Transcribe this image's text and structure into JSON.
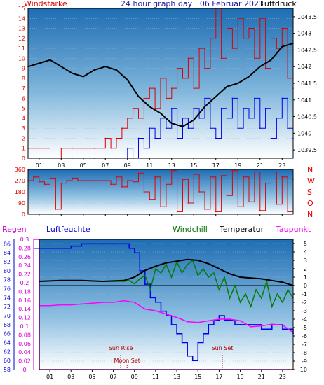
{
  "colors": {
    "background": "#ffffff",
    "plot_top": "#1f6fb4",
    "plot_bottom": "#ffffff",
    "red": "#e00000",
    "blue": "#0000ee",
    "black": "#000000",
    "green": "#008000",
    "magenta": "#ff00ff",
    "dark_red": "#b00000"
  },
  "chart_data": [
    {
      "type": "line",
      "title": "24 hour graph day : 06 Februar 2023",
      "left_label": "Windstärke",
      "right_label": "Luftdruck",
      "x_ticks": [
        "01",
        "03",
        "05",
        "07",
        "09",
        "11",
        "13",
        "15",
        "17",
        "19",
        "21",
        "23"
      ],
      "y_left_ticks": [
        "0",
        "1",
        "2",
        "3",
        "4",
        "5",
        "6",
        "7",
        "8",
        "9",
        "10",
        "11",
        "12",
        "13",
        "14",
        "15"
      ],
      "y_right_ticks": [
        "1039.5",
        "1040",
        "1040.5",
        "1041",
        "1041.5",
        "1042",
        "1042.5",
        "1043",
        "1043.5"
      ],
      "ylim_left": [
        0,
        15
      ],
      "ylim_right": [
        1039.25,
        1043.75
      ],
      "series": [
        {
          "name": "Windstärke",
          "axis": "left",
          "color": "red",
          "x": [
            0,
            1,
            2,
            3,
            4,
            5,
            6,
            7,
            7.5,
            8,
            8.5,
            9,
            9.5,
            10,
            10.5,
            11,
            11.5,
            12,
            12.5,
            13,
            13.5,
            14,
            14.5,
            15,
            15.5,
            16,
            16.5,
            17,
            17.5,
            18,
            18.5,
            19,
            19.5,
            20,
            20.5,
            21,
            21.5,
            22,
            22.5,
            23,
            23.5,
            24
          ],
          "values": [
            1,
            1,
            0,
            1,
            1,
            1,
            1,
            2,
            1,
            2,
            3,
            4,
            5,
            4,
            6,
            7,
            5,
            8,
            6,
            7,
            9,
            8,
            10,
            7,
            11,
            9,
            12,
            15,
            10,
            13,
            11,
            14,
            12,
            13,
            10,
            14,
            9,
            12,
            11,
            13,
            8,
            7
          ]
        },
        {
          "name": "Windböen",
          "axis": "left",
          "color": "blue",
          "x": [
            0,
            1,
            2,
            3,
            4,
            5,
            6,
            7,
            8,
            9,
            9.5,
            10,
            10.5,
            11,
            11.5,
            12,
            12.5,
            13,
            13.5,
            14,
            14.5,
            15,
            15.5,
            16,
            16.5,
            17,
            17.5,
            18,
            18.5,
            19,
            19.5,
            20,
            20.5,
            21,
            21.5,
            22,
            22.5,
            23,
            23.5,
            24
          ],
          "values": [
            0,
            0,
            0,
            0,
            0,
            0,
            0,
            0,
            0,
            1,
            0,
            2,
            1,
            3,
            2,
            4,
            3,
            5,
            2,
            4,
            3,
            5,
            4,
            6,
            3,
            2,
            5,
            4,
            6,
            3,
            5,
            4,
            6,
            3,
            5,
            2,
            4,
            6,
            3,
            2
          ]
        },
        {
          "name": "Luftdruck",
          "axis": "right",
          "color": "black",
          "x": [
            0,
            1,
            2,
            3,
            4,
            5,
            6,
            7,
            8,
            9,
            10,
            11,
            12,
            13,
            14,
            15,
            16,
            17,
            18,
            19,
            20,
            21,
            22,
            23,
            24
          ],
          "values": [
            1042.0,
            1042.1,
            1042.2,
            1042.0,
            1041.8,
            1041.7,
            1041.9,
            1042.0,
            1041.9,
            1041.6,
            1041.1,
            1040.8,
            1040.6,
            1040.3,
            1040.2,
            1040.4,
            1040.8,
            1041.1,
            1041.4,
            1041.5,
            1041.7,
            1042.0,
            1042.2,
            1042.6,
            1042.7
          ]
        }
      ]
    },
    {
      "type": "line",
      "title": "",
      "x_ticks": [
        "01",
        "03",
        "05",
        "07",
        "09",
        "11",
        "13",
        "15",
        "17",
        "19",
        "21",
        "23"
      ],
      "y_left_ticks": [
        "0",
        "90",
        "180",
        "270",
        "360"
      ],
      "y_right_ticks": [
        "N",
        "W",
        "S",
        "O",
        "N"
      ],
      "ylim": [
        0,
        360
      ],
      "series": [
        {
          "name": "Windrichtung",
          "color": "red",
          "x": [
            0,
            0.5,
            1,
            1.5,
            2,
            2.5,
            3,
            3.5,
            4,
            4.5,
            5,
            6,
            7,
            7.5,
            8,
            8.5,
            9,
            9.5,
            10,
            10.5,
            11,
            11.5,
            12,
            12.5,
            13,
            13.5,
            14,
            14.5,
            15,
            15.5,
            16,
            16.5,
            17,
            17.5,
            18,
            18.5,
            19,
            19.5,
            20,
            20.5,
            21,
            21.5,
            22,
            22.5,
            23,
            23.5,
            24
          ],
          "values": [
            270,
            300,
            260,
            240,
            290,
            40,
            250,
            270,
            290,
            270,
            270,
            270,
            270,
            240,
            300,
            220,
            270,
            260,
            330,
            180,
            120,
            300,
            60,
            240,
            350,
            20,
            280,
            90,
            320,
            180,
            40,
            300,
            20,
            310,
            150,
            350,
            60,
            300,
            100,
            340,
            30,
            250,
            340,
            80,
            300,
            20,
            280
          ]
        }
      ]
    },
    {
      "type": "line",
      "title": "",
      "labels": {
        "regen": "Regen",
        "luftfeuchte": "Luftfeuchte",
        "windchill": "Windchill",
        "temperatur": "Temperatur",
        "taupunkt": "Taupunkt"
      },
      "x_ticks": [
        "01",
        "03",
        "05",
        "07",
        "09",
        "11",
        "13",
        "15",
        "17",
        "19",
        "21",
        "23"
      ],
      "y_regen_ticks": [
        "0",
        "0.02",
        "0.04",
        "0.06",
        "0.08",
        "0.1",
        "0.12",
        "0.14",
        "0.16",
        "0.18",
        "0.2",
        "0.22",
        "0.24",
        "0.26",
        "0.28",
        "0.3"
      ],
      "y_humidity_ticks": [
        "58",
        "60",
        "62",
        "64",
        "66",
        "68",
        "70",
        "72",
        "74",
        "76",
        "78",
        "80",
        "82",
        "84",
        "86"
      ],
      "y_temp_ticks": [
        "5",
        "4",
        "3",
        "2",
        "1",
        "0",
        "-1",
        "-2",
        "-3",
        "-4",
        "-5",
        "-6",
        "-7",
        "-8",
        "-9",
        "-10"
      ],
      "ylim_regen": [
        0,
        0.3
      ],
      "ylim_humidity": [
        58,
        87
      ],
      "ylim_temp": [
        -10,
        5.5
      ],
      "annotations": [
        {
          "text": "Sun Rise",
          "x": 7.7
        },
        {
          "text": "Moon Set",
          "x": 8.3
        },
        {
          "text": "Sun Set",
          "x": 17.3
        }
      ],
      "series": [
        {
          "name": "Regen",
          "axis": "regen",
          "color": "magenta",
          "x": [
            -0.5,
            0,
            24
          ],
          "values": [
            0.3,
            0,
            0
          ]
        },
        {
          "name": "Luftfeuchte",
          "axis": "humidity",
          "color": "blue",
          "x": [
            -0.5,
            1,
            3,
            4,
            5,
            6,
            7,
            8,
            8.5,
            9,
            9.5,
            10,
            10.5,
            11,
            11.5,
            12,
            12.5,
            13,
            13.5,
            14,
            14.5,
            15,
            15.5,
            16,
            16.5,
            17,
            17.5,
            18,
            18.5,
            19,
            20,
            21,
            22,
            23,
            24
          ],
          "values": [
            85,
            85,
            85.5,
            86,
            86,
            86,
            86,
            86,
            85,
            84,
            80,
            77,
            74,
            73,
            71,
            70,
            68,
            66,
            64,
            61,
            60,
            64,
            66,
            68,
            69,
            70,
            69,
            69,
            68,
            68,
            68,
            67,
            68,
            67,
            66
          ]
        },
        {
          "name": "Windchill",
          "axis": "temp",
          "color": "green",
          "x": [
            0,
            2,
            4,
            6,
            8,
            8.5,
            9,
            9.5,
            10,
            10.5,
            11,
            11.5,
            12,
            12.5,
            13,
            13.5,
            14,
            14.5,
            15,
            15.5,
            16,
            16.5,
            17,
            17.5,
            18,
            18.5,
            19,
            19.5,
            20,
            20.5,
            21,
            21.5,
            22,
            22.5,
            23,
            23.5,
            24
          ],
          "values": [
            0.5,
            0.6,
            0.6,
            0.5,
            0.5,
            0.6,
            0.2,
            0.8,
            1.2,
            -0.5,
            2.0,
            1.5,
            2.5,
            1.0,
            2.8,
            1.5,
            2.5,
            3.0,
            1.2,
            2.0,
            1.0,
            1.5,
            -0.5,
            1.0,
            -1.5,
            0,
            -2.0,
            -1.0,
            -2.5,
            -0.5,
            -1.5,
            0.5,
            -2.5,
            -1.0,
            -2.0,
            -0.5,
            -1.5
          ]
        },
        {
          "name": "Temperatur",
          "axis": "temp",
          "color": "black",
          "x": [
            0,
            2,
            4,
            6,
            8,
            9,
            10,
            11,
            12,
            13,
            14,
            15,
            16,
            17,
            18,
            19,
            20,
            21,
            22,
            23,
            24
          ],
          "values": [
            0.5,
            0.6,
            0.6,
            0.5,
            0.6,
            1.0,
            1.8,
            2.3,
            2.7,
            2.9,
            3.1,
            3.0,
            2.6,
            2.0,
            1.4,
            1.0,
            0.9,
            0.8,
            0.6,
            0.4,
            0.0
          ]
        },
        {
          "name": "Taupunkt",
          "axis": "temp",
          "color": "magenta",
          "x": [
            0,
            1,
            2,
            3,
            4,
            5,
            6,
            7,
            8,
            9,
            10,
            11,
            12,
            13,
            14,
            15,
            16,
            17,
            18,
            19,
            20,
            21,
            22,
            23,
            24
          ],
          "values": [
            -2.4,
            -2.4,
            -2.3,
            -2.3,
            -2.2,
            -2.1,
            -2.0,
            -2.0,
            -1.8,
            -2.0,
            -2.8,
            -3.0,
            -3.4,
            -3.8,
            -4.3,
            -4.4,
            -4.2,
            -4.0,
            -4.0,
            -4.2,
            -4.9,
            -4.8,
            -4.6,
            -4.7,
            -5.6
          ]
        }
      ]
    }
  ]
}
